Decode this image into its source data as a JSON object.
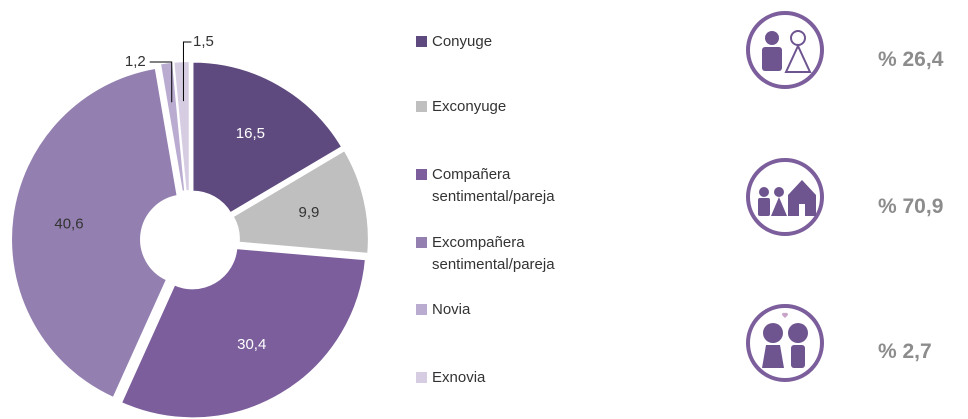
{
  "chart_data": {
    "type": "pie",
    "categories": [
      "Conyuge",
      "Exconyuge",
      "Compañera sentimental/pareja",
      "Excompañera sentimental/pareja",
      "Novia",
      "Exnovia"
    ],
    "values": [
      16.5,
      9.9,
      30.4,
      40.6,
      1.2,
      1.5
    ],
    "value_labels": [
      "16,5",
      "9,9",
      "30,4",
      "40,6",
      "1,2",
      "1,5"
    ],
    "colors": [
      "#5e4a7e",
      "#bfbfbf",
      "#7b5e9b",
      "#9380b0",
      "#b9acd0",
      "#d6cde3"
    ]
  },
  "summary": [
    "% 26,4",
    "% 70,9",
    "% 2,7"
  ]
}
